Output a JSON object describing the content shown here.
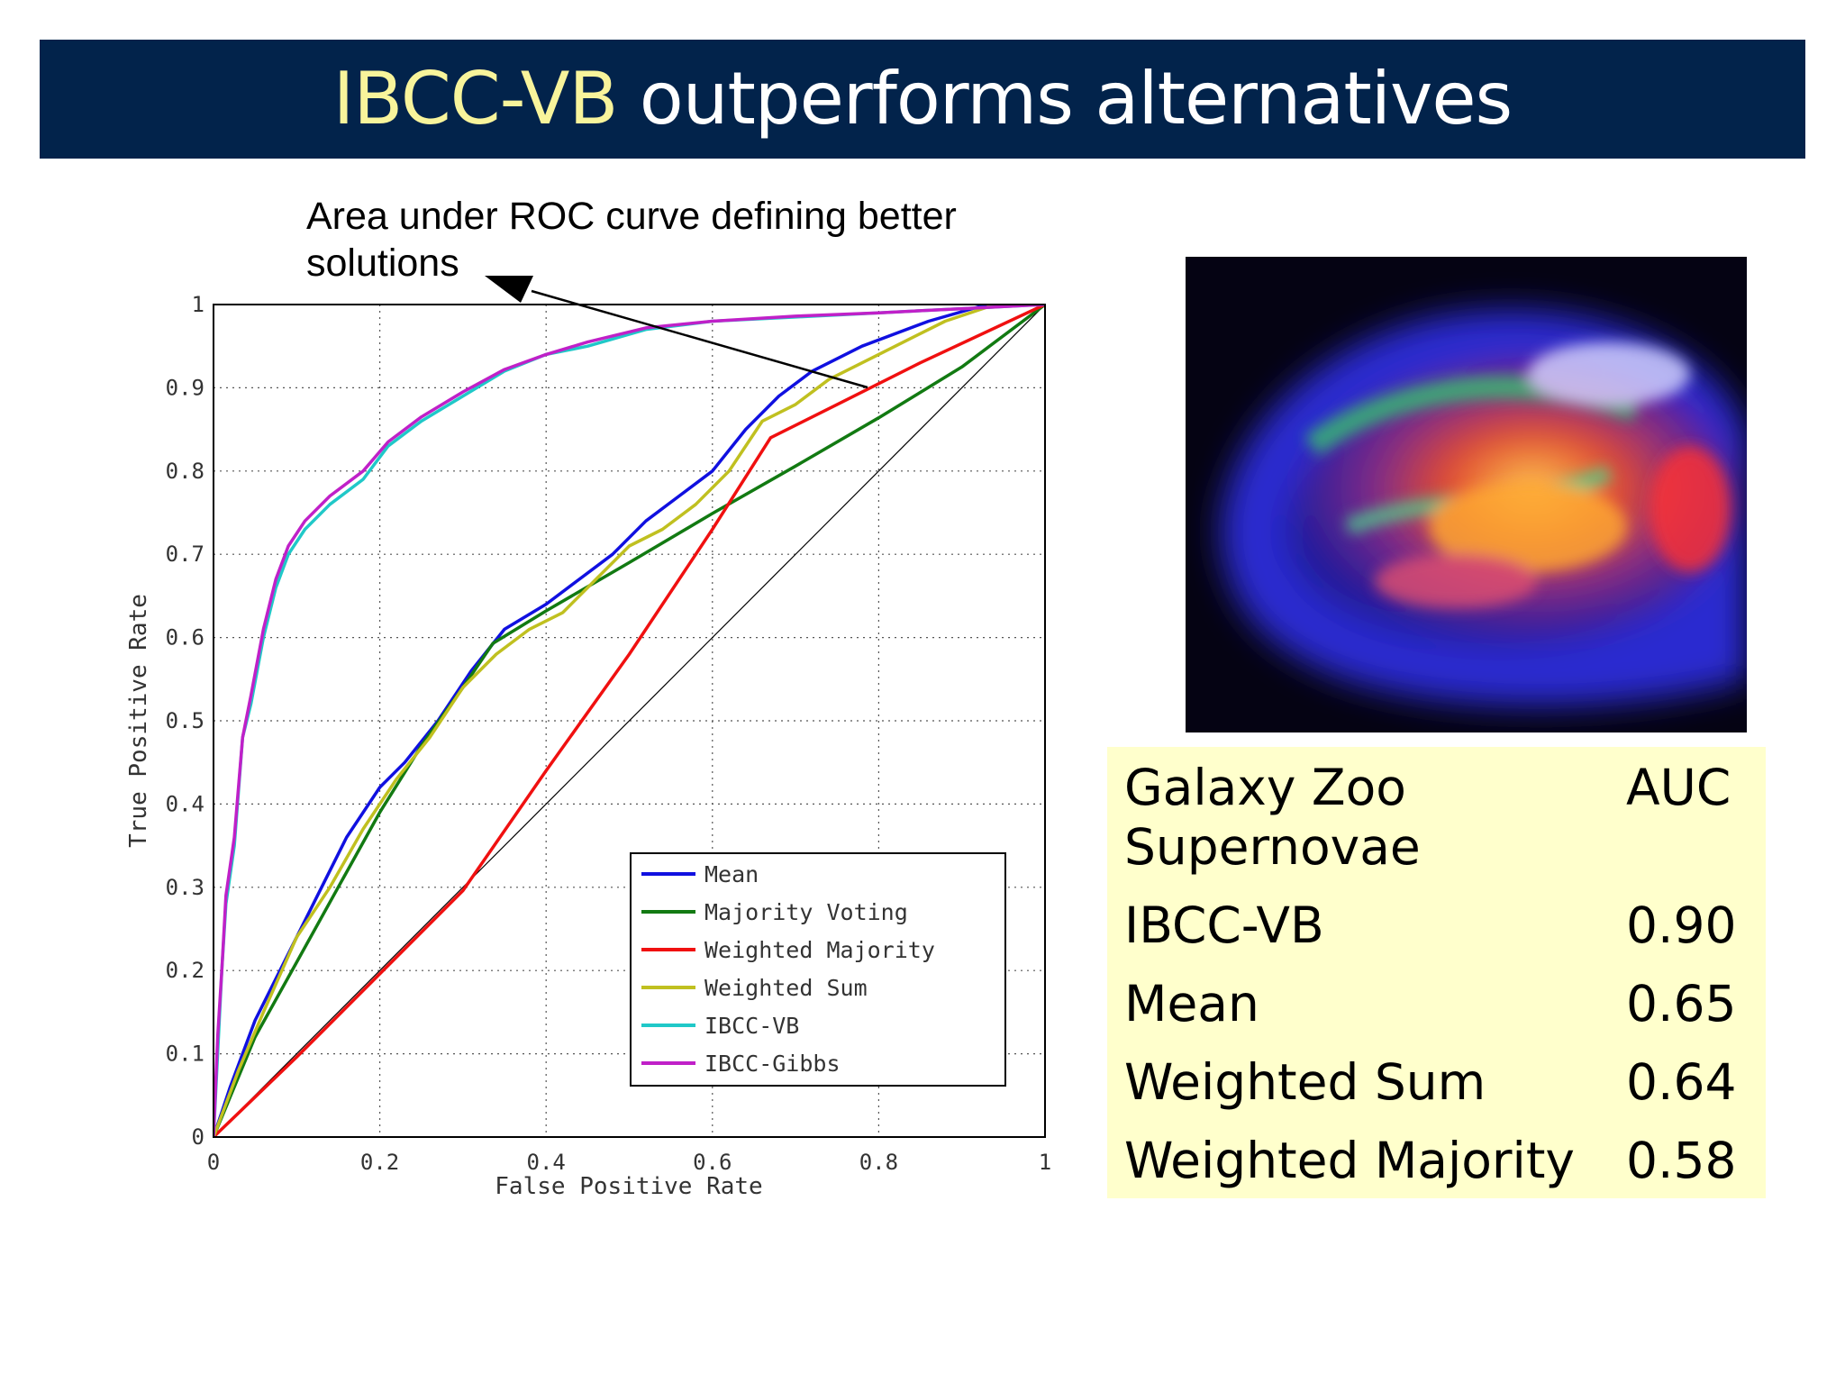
{
  "title": {
    "highlight": "IBCC-VB",
    "rest": " outperforms alternatives"
  },
  "annotation": "Area under ROC curve defining better solutions",
  "table": {
    "header": {
      "label_line1": "Galaxy Zoo",
      "label_line2": "Supernovae",
      "value": "AUC"
    },
    "rows": [
      {
        "label": "IBCC-VB",
        "value": "0.90"
      },
      {
        "label": "Mean",
        "value": "0.65"
      },
      {
        "label": "Weighted Sum",
        "value": "0.64"
      },
      {
        "label": "Weighted Majority",
        "value": "0.58"
      }
    ]
  },
  "chart_data": {
    "type": "line",
    "xlabel": "False Positive Rate",
    "ylabel": "True Positive Rate",
    "xlim": [
      0,
      1
    ],
    "ylim": [
      0,
      1
    ],
    "xticks": [
      "0",
      "0.2",
      "0.4",
      "0.6",
      "0.8",
      "1"
    ],
    "yticks": [
      "0",
      "0.1",
      "0.2",
      "0.3",
      "0.4",
      "0.5",
      "0.6",
      "0.7",
      "0.8",
      "0.9",
      "1"
    ],
    "grid": true,
    "legend_position": "lower-right",
    "series": [
      {
        "name": "Mean",
        "color": "#1010e0",
        "points": [
          [
            0,
            0
          ],
          [
            0.02,
            0.06
          ],
          [
            0.05,
            0.14
          ],
          [
            0.08,
            0.2
          ],
          [
            0.1,
            0.24
          ],
          [
            0.13,
            0.3
          ],
          [
            0.16,
            0.36
          ],
          [
            0.2,
            0.42
          ],
          [
            0.23,
            0.45
          ],
          [
            0.27,
            0.5
          ],
          [
            0.31,
            0.56
          ],
          [
            0.35,
            0.61
          ],
          [
            0.4,
            0.64
          ],
          [
            0.44,
            0.67
          ],
          [
            0.48,
            0.7
          ],
          [
            0.52,
            0.74
          ],
          [
            0.56,
            0.77
          ],
          [
            0.6,
            0.8
          ],
          [
            0.64,
            0.85
          ],
          [
            0.68,
            0.89
          ],
          [
            0.72,
            0.92
          ],
          [
            0.78,
            0.95
          ],
          [
            0.86,
            0.98
          ],
          [
            0.93,
            1.0
          ],
          [
            1,
            1
          ]
        ]
      },
      {
        "name": "Majority Voting",
        "color": "#127a12",
        "points": [
          [
            0,
            0
          ],
          [
            0.05,
            0.12
          ],
          [
            0.1,
            0.21
          ],
          [
            0.15,
            0.3
          ],
          [
            0.2,
            0.39
          ],
          [
            0.25,
            0.47
          ],
          [
            0.3,
            0.54
          ],
          [
            0.336,
            0.593
          ],
          [
            0.4,
            0.632
          ],
          [
            0.5,
            0.69
          ],
          [
            0.6,
            0.749
          ],
          [
            0.7,
            0.806
          ],
          [
            0.8,
            0.864
          ],
          [
            0.9,
            0.925
          ],
          [
            1,
            1
          ]
        ]
      },
      {
        "name": "Weighted Majority",
        "color": "#f01010",
        "points": [
          [
            0,
            0
          ],
          [
            0.1,
            0.096
          ],
          [
            0.2,
            0.196
          ],
          [
            0.3,
            0.296
          ],
          [
            0.4,
            0.44
          ],
          [
            0.5,
            0.58
          ],
          [
            0.6,
            0.73
          ],
          [
            0.67,
            0.84
          ],
          [
            0.75,
            0.88
          ],
          [
            0.85,
            0.93
          ],
          [
            1,
            1
          ]
        ]
      },
      {
        "name": "Weighted Sum",
        "color": "#c0c020",
        "points": [
          [
            0,
            0
          ],
          [
            0.03,
            0.08
          ],
          [
            0.06,
            0.15
          ],
          [
            0.1,
            0.24
          ],
          [
            0.14,
            0.3
          ],
          [
            0.18,
            0.37
          ],
          [
            0.22,
            0.43
          ],
          [
            0.26,
            0.48
          ],
          [
            0.3,
            0.54
          ],
          [
            0.34,
            0.58
          ],
          [
            0.38,
            0.61
          ],
          [
            0.42,
            0.63
          ],
          [
            0.46,
            0.67
          ],
          [
            0.5,
            0.71
          ],
          [
            0.54,
            0.73
          ],
          [
            0.58,
            0.76
          ],
          [
            0.62,
            0.8
          ],
          [
            0.66,
            0.86
          ],
          [
            0.7,
            0.88
          ],
          [
            0.74,
            0.91
          ],
          [
            0.8,
            0.94
          ],
          [
            0.88,
            0.98
          ],
          [
            0.94,
            1.0
          ],
          [
            1,
            1
          ]
        ]
      },
      {
        "name": "IBCC-VB",
        "color": "#20c8c8",
        "points": [
          [
            0,
            0
          ],
          [
            0.005,
            0.1
          ],
          [
            0.01,
            0.2
          ],
          [
            0.015,
            0.28
          ],
          [
            0.025,
            0.35
          ],
          [
            0.035,
            0.48
          ],
          [
            0.045,
            0.52
          ],
          [
            0.06,
            0.6
          ],
          [
            0.075,
            0.66
          ],
          [
            0.09,
            0.7
          ],
          [
            0.11,
            0.73
          ],
          [
            0.14,
            0.76
          ],
          [
            0.18,
            0.79
          ],
          [
            0.21,
            0.83
          ],
          [
            0.25,
            0.86
          ],
          [
            0.3,
            0.89
          ],
          [
            0.35,
            0.92
          ],
          [
            0.4,
            0.94
          ],
          [
            0.45,
            0.95
          ],
          [
            0.52,
            0.97
          ],
          [
            0.6,
            0.98
          ],
          [
            0.7,
            0.985
          ],
          [
            0.8,
            0.99
          ],
          [
            0.9,
            0.995
          ],
          [
            1,
            1
          ]
        ]
      },
      {
        "name": "IBCC-Gibbs",
        "color": "#c020c8",
        "points": [
          [
            0,
            0
          ],
          [
            0.005,
            0.12
          ],
          [
            0.01,
            0.2
          ],
          [
            0.015,
            0.29
          ],
          [
            0.025,
            0.36
          ],
          [
            0.035,
            0.48
          ],
          [
            0.045,
            0.53
          ],
          [
            0.06,
            0.61
          ],
          [
            0.075,
            0.67
          ],
          [
            0.09,
            0.71
          ],
          [
            0.11,
            0.74
          ],
          [
            0.14,
            0.77
          ],
          [
            0.18,
            0.8
          ],
          [
            0.21,
            0.835
          ],
          [
            0.25,
            0.865
          ],
          [
            0.3,
            0.895
          ],
          [
            0.35,
            0.922
          ],
          [
            0.4,
            0.94
          ],
          [
            0.45,
            0.955
          ],
          [
            0.52,
            0.972
          ],
          [
            0.6,
            0.98
          ],
          [
            0.7,
            0.986
          ],
          [
            0.8,
            0.99
          ],
          [
            0.9,
            0.995
          ],
          [
            1,
            1
          ]
        ]
      },
      {
        "name": "",
        "color": "#000000",
        "points": [
          [
            0,
            0
          ],
          [
            1,
            1
          ]
        ]
      }
    ]
  }
}
